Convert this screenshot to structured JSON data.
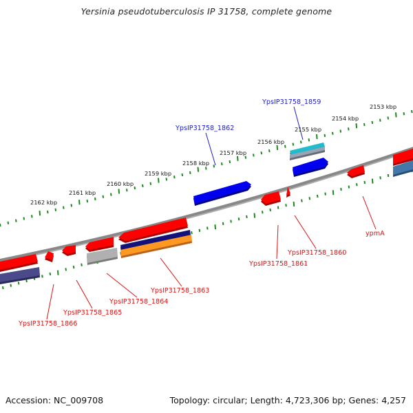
{
  "title": "Yersinia pseudotuberculosis IP 31758, complete genome",
  "footer": {
    "accession": "Accession: NC_009708",
    "summary": "Topology: circular; Length: 4,723,306 bp; Genes: 4,257"
  },
  "scale_labels": [
    "2153 kbp",
    "2154 kbp",
    "2155 kbp",
    "2156 kbp",
    "2157 kbp",
    "2158 kbp",
    "2159 kbp",
    "2160 kbp",
    "2161 kbp",
    "2162 kbp"
  ],
  "gene_labels": {
    "forward": [
      "YpsIP31758_1859",
      "YpsIP31758_1862"
    ],
    "reverse": [
      "YpsIP31758_1860",
      "YpsIP31758_1861",
      "ypmA",
      "YpsIP31758_1863",
      "YpsIP31758_1864",
      "YpsIP31758_1865",
      "YpsIP31758_1866"
    ]
  },
  "colors": {
    "backbone": "#808080",
    "forward_gene": "#0000ee",
    "reverse_gene": "#ff0000",
    "scale_ticks": "#1a8a1a",
    "forward_label": "#1a1acc",
    "reverse_label": "#dd1111",
    "cyan_feature": "#22bbcc",
    "navy_feature": "#12127a",
    "orange_feature": "#ff9922",
    "purple_feature": "#4a4a8a",
    "steelblue_feature": "#4477aa",
    "grey_feature": "#b0b0b0"
  }
}
